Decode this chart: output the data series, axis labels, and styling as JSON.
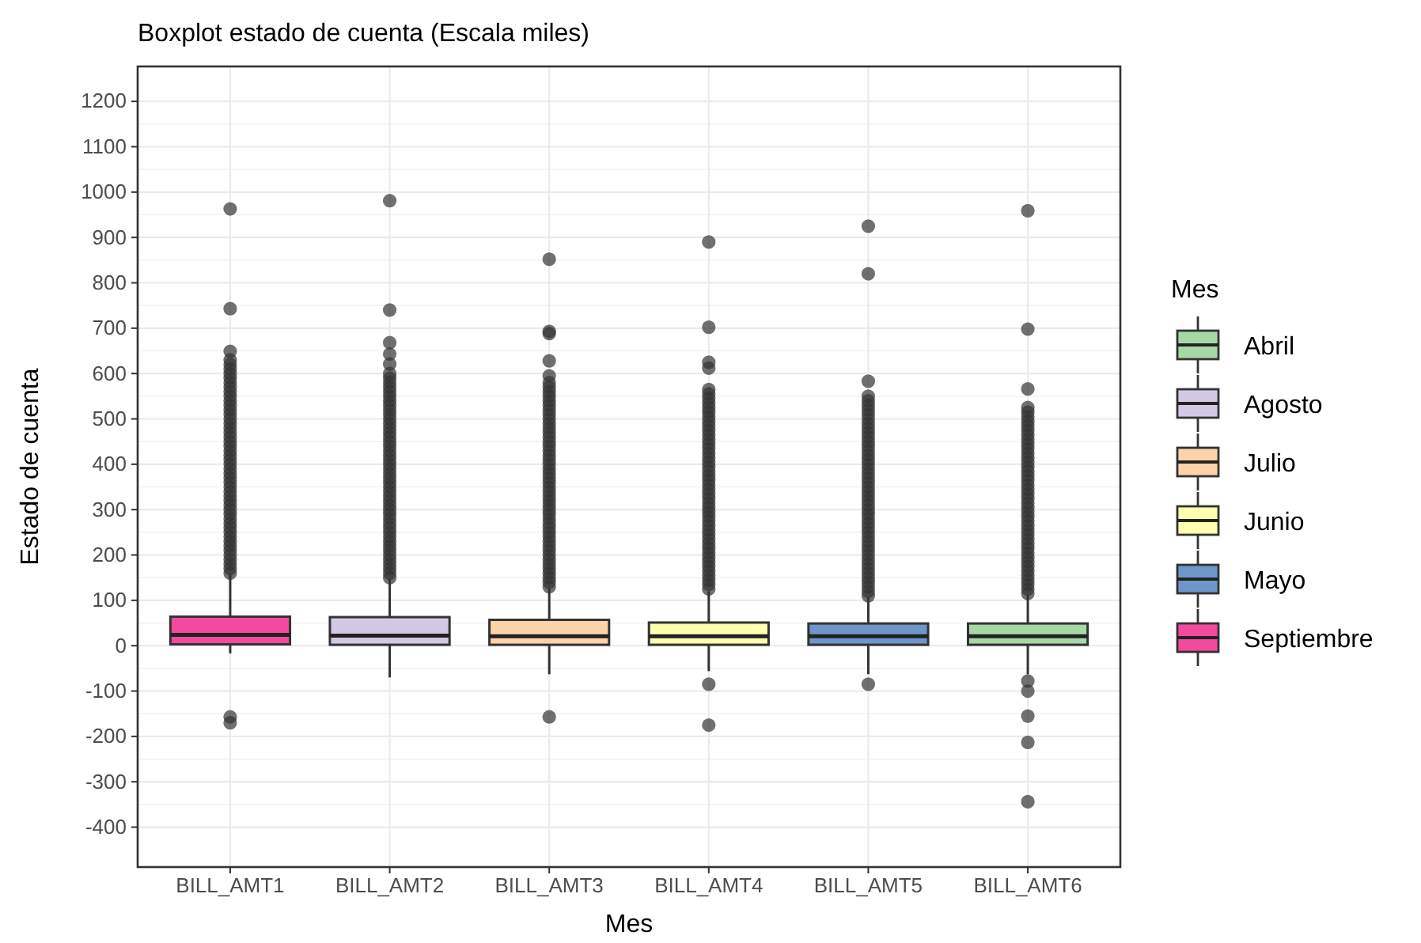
{
  "chart_data": {
    "type": "box",
    "title": "Boxplot estado de cuenta (Escala miles)",
    "xlabel": "Mes",
    "ylabel": "Estado de cuenta",
    "legend_title": "Mes",
    "legend": "right",
    "grid": true,
    "categories": [
      "BILL_AMT1",
      "BILL_AMT2",
      "BILL_AMT3",
      "BILL_AMT4",
      "BILL_AMT5",
      "BILL_AMT6"
    ],
    "ylim": [
      -488,
      1277
    ],
    "yticks": [
      -400,
      -300,
      -200,
      -100,
      0,
      100,
      200,
      300,
      400,
      500,
      600,
      700,
      800,
      900,
      1000,
      1100,
      1200
    ],
    "series": [
      {
        "name": "Abril",
        "color": "#a6d9a6",
        "boxes": [
          null,
          null,
          null,
          null,
          null,
          {
            "low": -63,
            "q1": 2,
            "median": 21,
            "q3": 49,
            "high": 112,
            "outliers": [
              115,
              125,
              135,
              145,
              155,
              165,
              175,
              185,
              195,
              205,
              215,
              225,
              235,
              245,
              255,
              265,
              275,
              285,
              295,
              305,
              315,
              325,
              335,
              345,
              355,
              365,
              375,
              385,
              395,
              405,
              415,
              425,
              435,
              445,
              455,
              465,
              475,
              485,
              495,
              505,
              515,
              525,
              566,
              698,
              959,
              -78,
              -100,
              -155,
              -213,
              -344
            ]
          }
        ]
      },
      {
        "name": "Agosto",
        "color": "#d4c9e4",
        "boxes": [
          null,
          {
            "low": -70,
            "q1": 2,
            "median": 22,
            "q3": 63,
            "high": 147,
            "outliers": [
              150,
              160,
              170,
              180,
              190,
              200,
              210,
              220,
              230,
              240,
              250,
              260,
              270,
              280,
              290,
              300,
              310,
              320,
              330,
              340,
              350,
              360,
              370,
              380,
              390,
              400,
              410,
              420,
              430,
              440,
              450,
              460,
              470,
              480,
              490,
              500,
              510,
              520,
              530,
              540,
              550,
              560,
              570,
              580,
              590,
              600,
              621,
              643,
              668,
              740,
              981
            ]
          },
          null,
          null,
          null,
          null
        ]
      },
      {
        "name": "Julio",
        "color": "#fdd3aa",
        "boxes": [
          null,
          null,
          {
            "low": -63,
            "q1": 2,
            "median": 21,
            "q3": 57,
            "high": 127,
            "outliers": [
              130,
              140,
              150,
              160,
              170,
              180,
              190,
              200,
              210,
              220,
              230,
              240,
              250,
              260,
              270,
              280,
              290,
              300,
              310,
              320,
              330,
              340,
              350,
              360,
              370,
              380,
              390,
              400,
              410,
              420,
              430,
              440,
              450,
              460,
              470,
              480,
              490,
              500,
              510,
              520,
              530,
              540,
              550,
              560,
              570,
              580,
              595,
              628,
              688,
              693,
              852,
              -157
            ]
          },
          null,
          null,
          null
        ]
      },
      {
        "name": "Junio",
        "color": "#ffffb0",
        "boxes": [
          null,
          null,
          null,
          {
            "low": -56,
            "q1": 2,
            "median": 21,
            "q3": 51,
            "high": 120,
            "outliers": [
              125,
              135,
              145,
              155,
              165,
              175,
              185,
              195,
              205,
              215,
              225,
              235,
              245,
              255,
              265,
              275,
              285,
              295,
              305,
              315,
              325,
              335,
              345,
              355,
              365,
              375,
              385,
              395,
              405,
              415,
              425,
              435,
              445,
              455,
              465,
              475,
              485,
              495,
              505,
              515,
              525,
              535,
              545,
              555,
              565,
              612,
              625,
              702,
              890,
              -85,
              -175
            ]
          },
          null,
          null
        ]
      },
      {
        "name": "Mayo",
        "color": "#6f96c8",
        "boxes": [
          null,
          null,
          null,
          null,
          {
            "low": -63,
            "q1": 2,
            "median": 21,
            "q3": 49,
            "high": 107,
            "outliers": [
              110,
              120,
              130,
              140,
              150,
              160,
              170,
              180,
              190,
              200,
              210,
              220,
              230,
              240,
              250,
              260,
              270,
              280,
              290,
              300,
              310,
              320,
              330,
              340,
              350,
              360,
              370,
              380,
              390,
              400,
              410,
              420,
              430,
              440,
              450,
              460,
              470,
              480,
              490,
              500,
              510,
              520,
              530,
              540,
              550,
              583,
              820,
              925,
              -85
            ]
          },
          null
        ]
      },
      {
        "name": "Septiembre",
        "color": "#f34aa0",
        "boxes": [
          {
            "low": -17,
            "q1": 3,
            "median": 24,
            "q3": 64,
            "high": 157,
            "outliers": [
              160,
              170,
              180,
              190,
              200,
              210,
              220,
              230,
              240,
              250,
              260,
              270,
              280,
              290,
              300,
              310,
              320,
              330,
              340,
              350,
              360,
              370,
              380,
              390,
              400,
              410,
              420,
              430,
              440,
              450,
              460,
              470,
              480,
              490,
              500,
              510,
              520,
              530,
              540,
              550,
              560,
              570,
              580,
              590,
              600,
              610,
              620,
              630,
              649,
              743,
              963,
              -157,
              -170
            ]
          },
          null,
          null,
          null,
          null,
          null
        ]
      }
    ]
  }
}
